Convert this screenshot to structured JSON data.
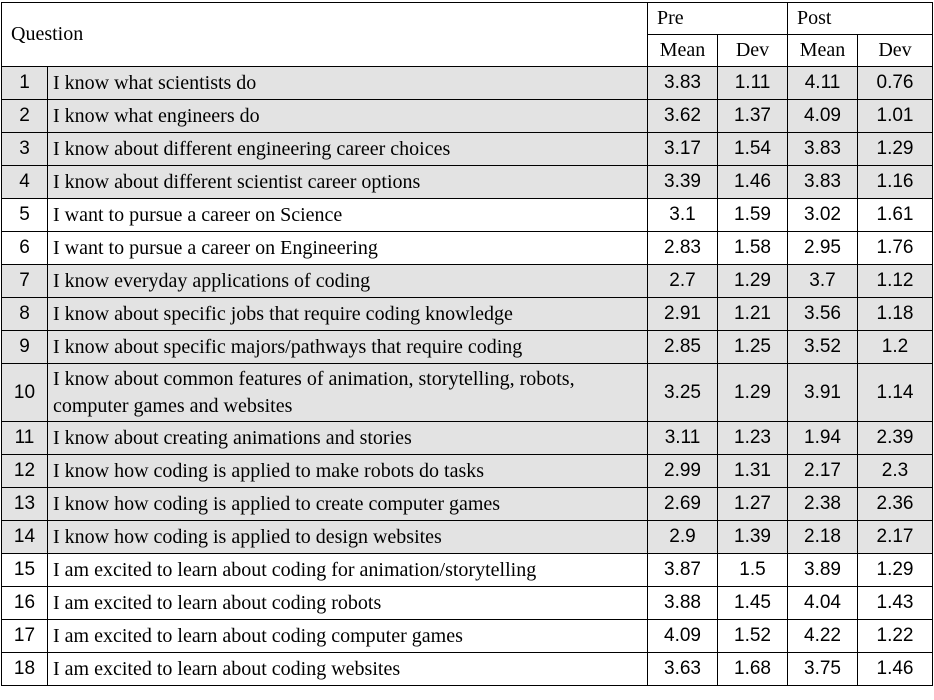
{
  "table": {
    "header": {
      "question": "Question",
      "pre": "Pre",
      "post": "Post",
      "pre_mean": "Mean",
      "pre_dev": "Dev",
      "post_mean": "Mean",
      "post_dev": "Dev"
    },
    "rows": [
      {
        "num": "1",
        "question": "I know what scientists do",
        "pre_mean": "3.83",
        "pre_dev": "1.11",
        "post_mean": "4.11",
        "post_dev": "0.76"
      },
      {
        "num": "2",
        "question": "I know what engineers do",
        "pre_mean": "3.62",
        "pre_dev": "1.37",
        "post_mean": "4.09",
        "post_dev": "1.01"
      },
      {
        "num": "3",
        "question": "I know about different engineering career choices",
        "pre_mean": "3.17",
        "pre_dev": "1.54",
        "post_mean": "3.83",
        "post_dev": "1.29"
      },
      {
        "num": "4",
        "question": "I know about different scientist career options",
        "pre_mean": "3.39",
        "pre_dev": "1.46",
        "post_mean": "3.83",
        "post_dev": "1.16"
      },
      {
        "num": "5",
        "question": "I want to pursue a career on Science",
        "pre_mean": "3.1",
        "pre_dev": "1.59",
        "post_mean": "3.02",
        "post_dev": "1.61"
      },
      {
        "num": "6",
        "question": "I want to pursue a career on Engineering",
        "pre_mean": "2.83",
        "pre_dev": "1.58",
        "post_mean": "2.95",
        "post_dev": "1.76"
      },
      {
        "num": "7",
        "question": "I know everyday applications of coding",
        "pre_mean": "2.7",
        "pre_dev": "1.29",
        "post_mean": "3.7",
        "post_dev": "1.12"
      },
      {
        "num": "8",
        "question": "I know about specific jobs that require coding knowledge",
        "pre_mean": "2.91",
        "pre_dev": "1.21",
        "post_mean": "3.56",
        "post_dev": "1.18"
      },
      {
        "num": "9",
        "question": "I know about specific majors/pathways that require coding",
        "pre_mean": "2.85",
        "pre_dev": "1.25",
        "post_mean": "3.52",
        "post_dev": "1.2"
      },
      {
        "num": "10",
        "question": "I know about common features of animation, storytelling, robots, computer games and websites",
        "pre_mean": "3.25",
        "pre_dev": "1.29",
        "post_mean": "3.91",
        "post_dev": "1.14"
      },
      {
        "num": "11",
        "question": "I know about creating animations and stories",
        "pre_mean": "3.11",
        "pre_dev": "1.23",
        "post_mean": "1.94",
        "post_dev": "2.39"
      },
      {
        "num": "12",
        "question": "I know how coding is applied to make robots do tasks",
        "pre_mean": "2.99",
        "pre_dev": "1.31",
        "post_mean": "2.17",
        "post_dev": "2.3"
      },
      {
        "num": "13",
        "question": "I know how coding is applied to create computer games",
        "pre_mean": "2.69",
        "pre_dev": "1.27",
        "post_mean": "2.38",
        "post_dev": "2.36"
      },
      {
        "num": "14",
        "question": "I know how coding is applied to design websites",
        "pre_mean": "2.9",
        "pre_dev": "1.39",
        "post_mean": "2.18",
        "post_dev": "2.17"
      },
      {
        "num": "15",
        "question": "I am excited to learn about coding for animation/storytelling",
        "pre_mean": "3.87",
        "pre_dev": "1.5",
        "post_mean": "3.89",
        "post_dev": "1.29"
      },
      {
        "num": "16",
        "question": "I am excited to learn about coding robots",
        "pre_mean": "3.88",
        "pre_dev": "1.45",
        "post_mean": "4.04",
        "post_dev": "1.43"
      },
      {
        "num": "17",
        "question": "I am excited to learn about coding computer games",
        "pre_mean": "4.09",
        "pre_dev": "1.52",
        "post_mean": "4.22",
        "post_dev": "1.22"
      },
      {
        "num": "18",
        "question": "I am excited to learn about coding websites",
        "pre_mean": "3.63",
        "pre_dev": "1.68",
        "post_mean": "3.75",
        "post_dev": "1.46"
      }
    ],
    "shade_color": "#e3e3e3"
  }
}
